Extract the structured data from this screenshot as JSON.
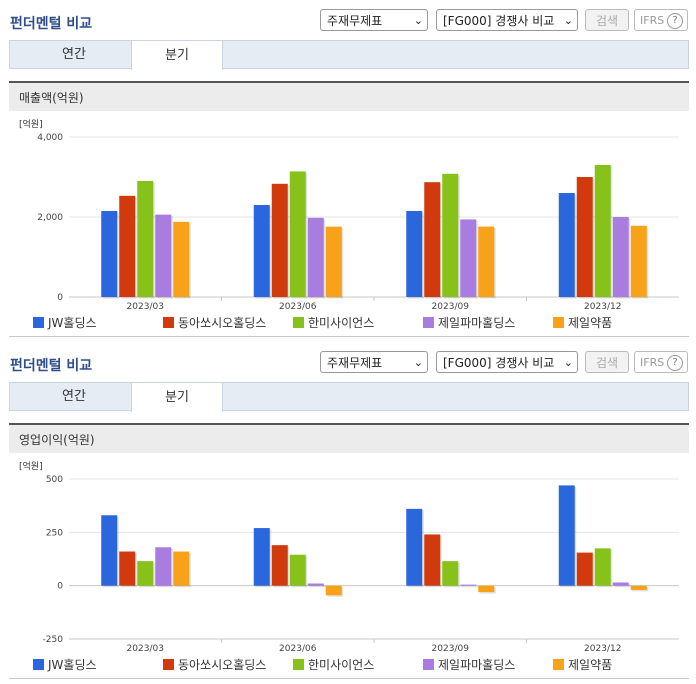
{
  "sections": [
    {
      "title": "펀더멘털 비교",
      "select_statement": "주재무제표",
      "select_compare": "[FG000] 경쟁사 비교",
      "search_label": "검색",
      "ifrs_label": "IFRS",
      "help_icon": "question-icon",
      "tabs": [
        {
          "label": "연간",
          "active": false
        },
        {
          "label": "분기",
          "active": true
        }
      ],
      "metric_label": "매출액(억원)",
      "unit_label": "[억원]",
      "legend": [
        "JW홀딩스",
        "동아쏘시오홀딩스",
        "한미사이언스",
        "제일파마홀딩스",
        "제일약품"
      ]
    },
    {
      "title": "펀더멘털 비교",
      "select_statement": "주재무제표",
      "select_compare": "[FG000] 경쟁사 비교",
      "search_label": "검색",
      "ifrs_label": "IFRS",
      "help_icon": "question-icon",
      "tabs": [
        {
          "label": "연간",
          "active": false
        },
        {
          "label": "분기",
          "active": true
        }
      ],
      "metric_label": "영업이익(억원)",
      "unit_label": "[억원]",
      "legend": [
        "JW홀딩스",
        "동아쏘시오홀딩스",
        "한미사이언스",
        "제일파마홀딩스",
        "제일약품"
      ]
    }
  ],
  "colors": {
    "series": [
      "#2a66dc",
      "#d13a0c",
      "#86c21a",
      "#a97de0",
      "#f7a219"
    ],
    "title": "#2f4d8a"
  },
  "chart_data": [
    {
      "type": "bar",
      "title": "매출액(억원)",
      "ylabel": "[억원]",
      "categories": [
        "2023/03",
        "2023/06",
        "2023/09",
        "2023/12"
      ],
      "yticks": [
        "4,000",
        "2,000",
        "0"
      ],
      "ytick_values": [
        4000,
        2000,
        0
      ],
      "ylim": [
        0,
        4000
      ],
      "grid": true,
      "series": [
        {
          "name": "JW홀딩스",
          "values": [
            2150,
            2300,
            2150,
            2600
          ]
        },
        {
          "name": "동아쏘시오홀딩스",
          "values": [
            2530,
            2830,
            2870,
            3000
          ]
        },
        {
          "name": "한미사이언스",
          "values": [
            2900,
            3140,
            3080,
            3300
          ]
        },
        {
          "name": "제일파마홀딩스",
          "values": [
            2060,
            1980,
            1940,
            2000
          ]
        },
        {
          "name": "제일약품",
          "values": [
            1880,
            1760,
            1760,
            1780
          ]
        }
      ]
    },
    {
      "type": "bar",
      "title": "영업이익(억원)",
      "ylabel": "[억원]",
      "categories": [
        "2023/03",
        "2023/06",
        "2023/09",
        "2023/12"
      ],
      "yticks": [
        "500",
        "250",
        "0",
        "-250"
      ],
      "ytick_values": [
        500,
        250,
        0,
        -250
      ],
      "ylim": [
        -250,
        500
      ],
      "grid": true,
      "series": [
        {
          "name": "JW홀딩스",
          "values": [
            330,
            270,
            360,
            470
          ]
        },
        {
          "name": "동아쏘시오홀딩스",
          "values": [
            160,
            190,
            240,
            155
          ]
        },
        {
          "name": "한미사이언스",
          "values": [
            115,
            145,
            115,
            175
          ]
        },
        {
          "name": "제일파마홀딩스",
          "values": [
            180,
            10,
            5,
            15
          ]
        },
        {
          "name": "제일약품",
          "values": [
            160,
            -45,
            -30,
            -20
          ]
        }
      ]
    }
  ]
}
